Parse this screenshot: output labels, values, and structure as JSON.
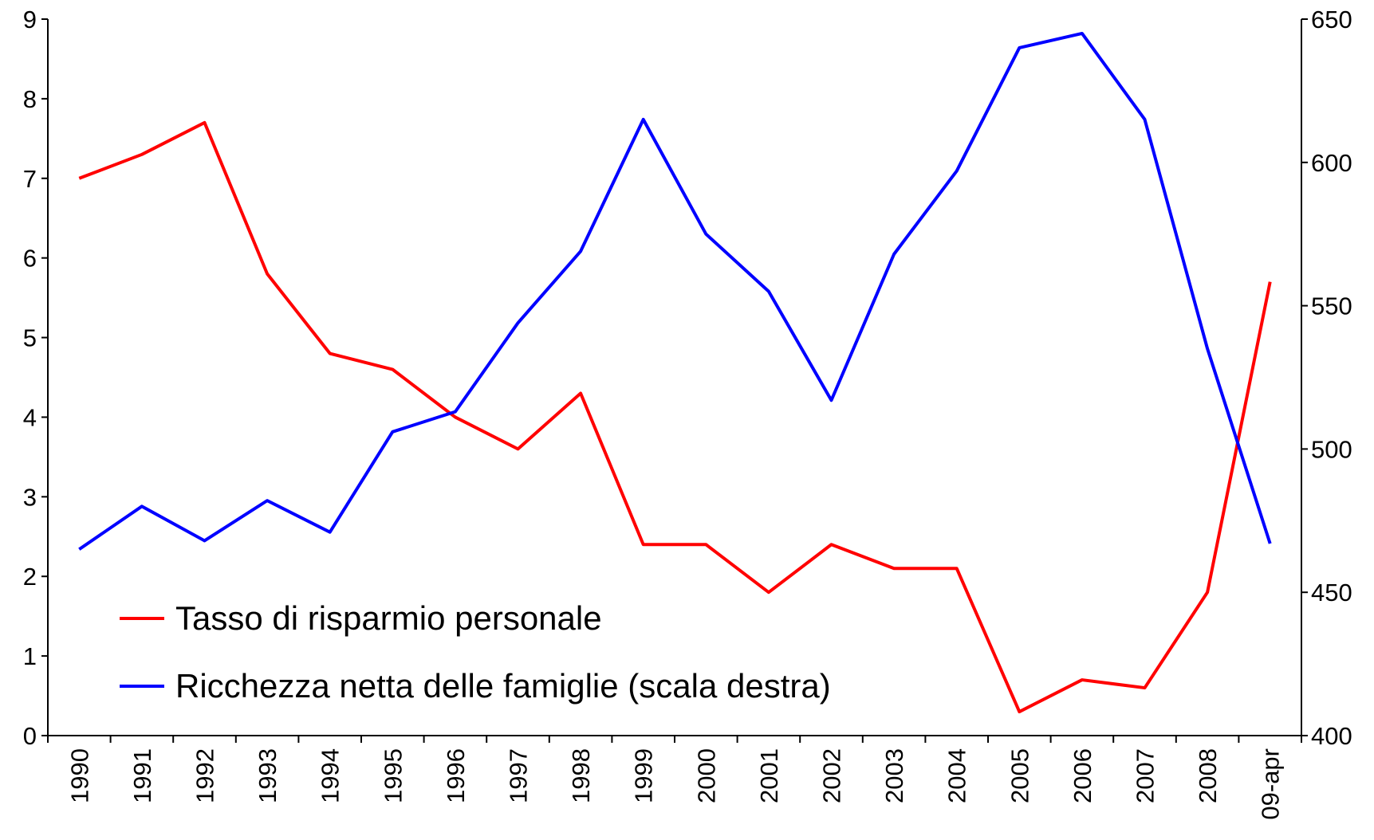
{
  "chart_data": {
    "type": "line",
    "categories": [
      "1990",
      "1991",
      "1992",
      "1993",
      "1994",
      "1995",
      "1996",
      "1997",
      "1998",
      "1999",
      "2000",
      "2001",
      "2002",
      "2003",
      "2004",
      "2005",
      "2006",
      "2007",
      "2008",
      "09-apr"
    ],
    "series": [
      {
        "name": "Tasso di risparmio personale",
        "color": "#ff0000",
        "values": [
          7.0,
          7.3,
          7.7,
          5.8,
          4.8,
          4.6,
          4.0,
          3.6,
          4.3,
          2.4,
          2.4,
          1.8,
          2.4,
          2.1,
          2.1,
          0.3,
          0.7,
          0.6,
          1.8,
          5.7
        ]
      },
      {
        "name": "Ricchezza netta delle famiglie (scala destra)",
        "color": "#0000ff",
        "axis": "y2",
        "values": [
          465,
          480,
          468,
          482,
          471,
          506,
          513,
          544,
          569,
          615,
          575,
          555,
          517,
          568,
          597,
          640,
          645,
          615,
          535,
          467
        ]
      }
    ],
    "ylim": [
      0,
      9
    ],
    "yticks": [
      0,
      1,
      2,
      3,
      4,
      5,
      6,
      7,
      8,
      9
    ],
    "y2lim": [
      400,
      650
    ],
    "y2ticks": [
      400,
      450,
      500,
      550,
      600,
      650
    ],
    "legend": "lower-left",
    "grid": false
  }
}
